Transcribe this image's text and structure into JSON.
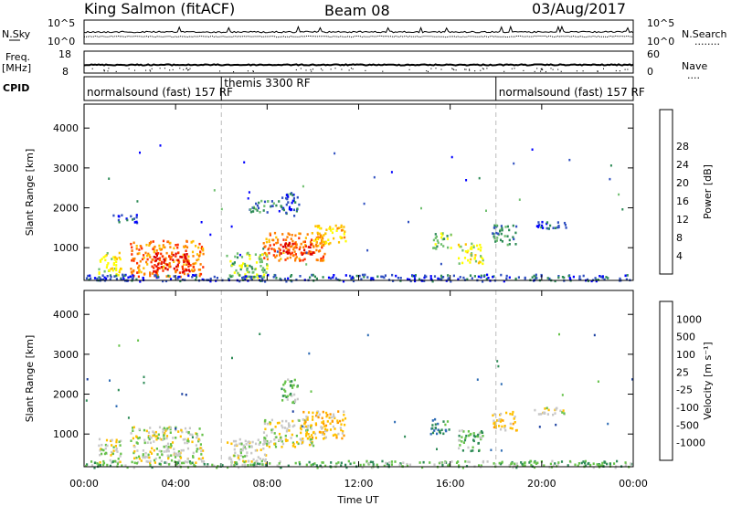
{
  "header": {
    "station": "King Salmon (fitACF)",
    "beam": "Beam 08",
    "date": "03/Aug/2017"
  },
  "side_labels": {
    "nsky": "N.Sky",
    "freq_top": "Freq.",
    "freq_unit": "[MHz]",
    "cpid": "CPID",
    "nsearch": "N.Search",
    "nsearch_dots": "........",
    "nave": "Nave",
    "nave_dots": "...."
  },
  "strip_ticks": {
    "noise_hi": "10^5",
    "noise_lo": "10^0",
    "noise_hi_r": "10^5",
    "noise_lo_r": "10^0",
    "freq_hi": "18",
    "freq_lo": "8",
    "nave_hi": "60",
    "nave_lo": "0"
  },
  "cpid_modes": [
    {
      "label": "normalsound (fast) 157 RF",
      "start": 0
    },
    {
      "label": "themis 3300 RF",
      "start": 6
    },
    {
      "label": "normalsound (fast) 157 RF",
      "start": 18
    }
  ],
  "time_axis": {
    "label": "Time UT",
    "ticks": [
      "00:00",
      "04:00",
      "08:00",
      "12:00",
      "16:00",
      "20:00",
      "00:00"
    ]
  },
  "chart_data": [
    {
      "type": "heatmap",
      "name": "power-panel",
      "ylabel": "Slant Range [km]",
      "yticks": [
        1000,
        2000,
        3000,
        4000
      ],
      "ylim": [
        180,
        4600
      ],
      "xlim": [
        0,
        24
      ],
      "colorbar": {
        "label": "Power [dB]",
        "ticks": [
          "4",
          "8",
          "12",
          "16",
          "20",
          "24",
          "28"
        ],
        "colors": [
          "#0000ff",
          "#3050c0",
          "#2e8b57",
          "#6fbf6f",
          "#ffff00",
          "#ffc000",
          "#ff7f00",
          "#ff3000",
          "#dd0000"
        ]
      },
      "patches": [
        {
          "t": [
            0.6,
            1.6
          ],
          "r": [
            300,
            900
          ],
          "level": 4
        },
        {
          "t": [
            2.0,
            5.2
          ],
          "r": [
            300,
            1200
          ],
          "level": 6
        },
        {
          "t": [
            3.0,
            4.6
          ],
          "r": [
            400,
            900
          ],
          "level": 8
        },
        {
          "t": [
            1.2,
            2.3
          ],
          "r": [
            1650,
            1850
          ],
          "level": 1
        },
        {
          "t": [
            6.2,
            8.0
          ],
          "r": [
            250,
            900
          ],
          "level": 3
        },
        {
          "t": [
            7.8,
            10.5
          ],
          "r": [
            700,
            1400
          ],
          "level": 6
        },
        {
          "t": [
            8.5,
            10.0
          ],
          "r": [
            850,
            1150
          ],
          "level": 8
        },
        {
          "t": [
            10.0,
            11.4
          ],
          "r": [
            1100,
            1600
          ],
          "level": 5
        },
        {
          "t": [
            8.6,
            9.4
          ],
          "r": [
            1800,
            2400
          ],
          "level": 1
        },
        {
          "t": [
            7.2,
            8.6
          ],
          "r": [
            1900,
            2200
          ],
          "level": 2
        },
        {
          "t": [
            15.1,
            16.0
          ],
          "r": [
            1000,
            1400
          ],
          "level": 3
        },
        {
          "t": [
            16.3,
            17.4
          ],
          "r": [
            600,
            1150
          ],
          "level": 4
        },
        {
          "t": [
            17.8,
            18.9
          ],
          "r": [
            1100,
            1600
          ],
          "level": 2
        },
        {
          "t": [
            19.6,
            21.2
          ],
          "r": [
            1500,
            1700
          ],
          "level": 1
        },
        {
          "t": [
            0.0,
            24.0
          ],
          "r": [
            180,
            350
          ],
          "level": 1
        }
      ]
    },
    {
      "type": "heatmap",
      "name": "velocity-panel",
      "ylabel": "Slant Range [km]",
      "yticks": [
        1000,
        2000,
        3000,
        4000
      ],
      "ylim": [
        180,
        4600
      ],
      "xlim": [
        0,
        24
      ],
      "colorbar": {
        "label": "Velocity [m s⁻¹]",
        "ticks": [
          "1000",
          "500",
          "100",
          "25",
          "-25",
          "-100",
          "-500",
          "-1000"
        ],
        "colors": [
          "#1a3fa0",
          "#2f6db5",
          "#2e8b57",
          "#66c24a",
          "#c8c8c8",
          "#ffc000",
          "#ff9a00",
          "#ff5000",
          "#ee0000"
        ]
      },
      "patches": [
        {
          "t": [
            0.6,
            1.6
          ],
          "r": [
            300,
            900
          ],
          "level": 4
        },
        {
          "t": [
            2.0,
            5.2
          ],
          "r": [
            300,
            1200
          ],
          "level": 4
        },
        {
          "t": [
            6.2,
            8.0
          ],
          "r": [
            250,
            900
          ],
          "level": 4
        },
        {
          "t": [
            7.8,
            10.0
          ],
          "r": [
            700,
            1400
          ],
          "level": 4
        },
        {
          "t": [
            9.5,
            11.4
          ],
          "r": [
            900,
            1600
          ],
          "level": 5
        },
        {
          "t": [
            8.6,
            9.4
          ],
          "r": [
            1800,
            2400
          ],
          "level": 3
        },
        {
          "t": [
            15.1,
            16.0
          ],
          "r": [
            1000,
            1400
          ],
          "level": 2
        },
        {
          "t": [
            16.3,
            17.4
          ],
          "r": [
            600,
            1150
          ],
          "level": 3
        },
        {
          "t": [
            17.8,
            18.9
          ],
          "r": [
            1100,
            1600
          ],
          "level": 5
        },
        {
          "t": [
            19.6,
            21.2
          ],
          "r": [
            1500,
            1700
          ],
          "level": 4
        },
        {
          "t": [
            0.0,
            24.0
          ],
          "r": [
            180,
            350
          ],
          "level": 3
        }
      ]
    }
  ]
}
